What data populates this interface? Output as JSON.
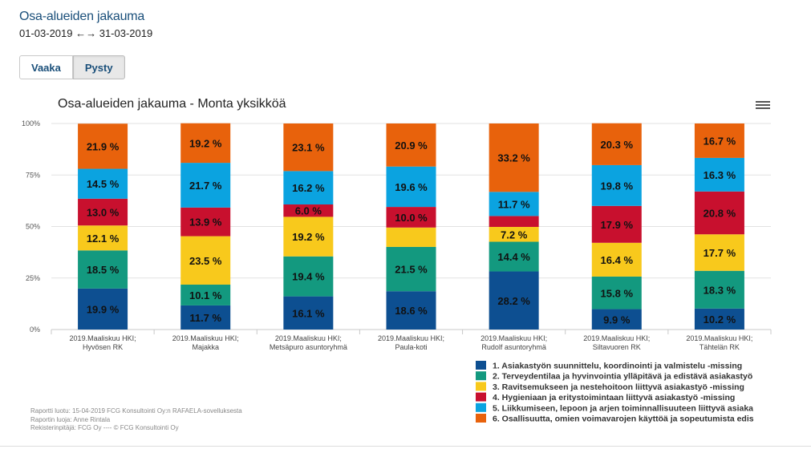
{
  "header": {
    "title": "Osa-alueiden jakauma",
    "date_range": "01-03-2019 ←→ 31-03-2019"
  },
  "tabs": [
    {
      "label": "Vaaka",
      "active": false
    },
    {
      "label": "Pysty",
      "active": true
    }
  ],
  "menu_icon": "hamburger-menu-icon",
  "chart_data": {
    "type": "bar",
    "stacked": "percent",
    "title": "Osa-alueiden jakauma - Monta yksikköä",
    "ylim": [
      0,
      100
    ],
    "y_ticks": [
      "0%",
      "25%",
      "50%",
      "75%",
      "100%"
    ],
    "y_tick_values": [
      0,
      25,
      50,
      75,
      100
    ],
    "grid": true,
    "legend_position": "bottom-right",
    "categories": [
      [
        "2019.Maaliskuu HKI;",
        "Hyvösen RK"
      ],
      [
        "2019.Maaliskuu HKI;",
        "Majakka"
      ],
      [
        "2019.Maaliskuu HKI;",
        "Metsäpuro asuntoryhmä"
      ],
      [
        "2019.Maaliskuu HKI;",
        "Paula-koti"
      ],
      [
        "2019.Maaliskuu HKI;",
        "Rudolf asuntoryhmä"
      ],
      [
        "2019.Maaliskuu HKI;",
        "Siltavuoren RK"
      ],
      [
        "2019.Maaliskuu HKI;",
        "Tähtelän RK"
      ]
    ],
    "series": [
      {
        "name": "1. Asiakastyön suunnittelu, koordinointi ja valmistelu -missing",
        "color": "#0d4f91",
        "values": [
          19.9,
          11.7,
          16.1,
          18.6,
          28.2,
          9.9,
          10.2
        ],
        "labels": [
          "19.9 %",
          "11.7 %",
          "16.1 %",
          "18.6 %",
          "28.2 %",
          "9.9 %",
          "10.2 %"
        ]
      },
      {
        "name": "2. Terveydentilaa ja hyvinvointia ylläpitävä ja edistävä asiakastyö",
        "color": "#13997f",
        "values": [
          18.5,
          10.1,
          19.4,
          21.5,
          14.4,
          15.8,
          18.3
        ],
        "labels": [
          "18.5 %",
          "10.1 %",
          "19.4 %",
          "21.5 %",
          "14.4 %",
          "15.8 %",
          "18.3 %"
        ]
      },
      {
        "name": "3. Ravitsemukseen ja nestehoitoon liittyvä asiakastyö -missing",
        "color": "#f8c91c",
        "values": [
          12.1,
          23.5,
          19.2,
          9.4,
          7.2,
          16.4,
          17.7
        ],
        "labels": [
          "12.1 %",
          "23.5 %",
          "19.2 %",
          "",
          "7.2 %",
          "16.4 %",
          "17.7 %"
        ]
      },
      {
        "name": "4. Hygieniaan ja eritystoimintaan liittyvä asiakastyö -missing",
        "color": "#c8102e",
        "values": [
          13.0,
          13.9,
          6.0,
          10.0,
          5.3,
          17.9,
          20.8
        ],
        "labels": [
          "13.0 %",
          "13.9 %",
          "6.0 %",
          "10.0 %",
          "",
          "17.9 %",
          "20.8 %"
        ]
      },
      {
        "name": "5. Liikkumiseen, lepoon ja arjen toiminnallisuuteen liittyvä asiaka",
        "color": "#0ba3e0",
        "values": [
          14.5,
          21.7,
          16.2,
          19.6,
          11.7,
          19.8,
          16.3
        ],
        "labels": [
          "14.5 %",
          "21.7 %",
          "16.2 %",
          "19.6 %",
          "11.7 %",
          "19.8 %",
          "16.3 %"
        ]
      },
      {
        "name": "6. Osallisuutta, omien voimavarojen käyttöä ja sopeutumista edis",
        "color": "#e8620c",
        "values": [
          21.9,
          19.2,
          23.1,
          20.9,
          33.2,
          20.3,
          16.7
        ],
        "labels": [
          "21.9 %",
          "19.2 %",
          "23.1 %",
          "20.9 %",
          "33.2 %",
          "20.3 %",
          "16.7 %"
        ]
      }
    ]
  },
  "footer": [
    "Raportti luotu: 15-04-2019 FCG Konsultointi Oy:n RAFAELA-sovelluksesta",
    "Raportin luoja: Anne Rintala",
    "Rekisterinpitäjä: FCG Oy ---- © FCG Konsultointi Oy"
  ]
}
